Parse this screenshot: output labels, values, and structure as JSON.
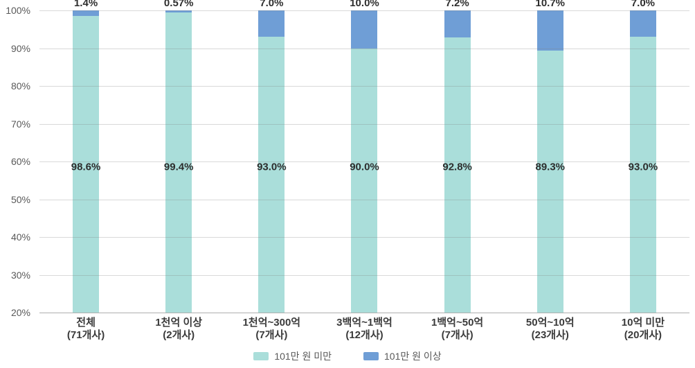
{
  "chart_data": {
    "type": "bar",
    "stacked": true,
    "orientation": "vertical",
    "grid": true,
    "legend_position": "bottom",
    "ylim": [
      20,
      100
    ],
    "yticks": [
      20,
      30,
      40,
      50,
      60,
      70,
      80,
      90,
      100
    ],
    "ytick_labels": [
      "20%",
      "30%",
      "40%",
      "50%",
      "60%",
      "70%",
      "80%",
      "90%",
      "100%"
    ],
    "categories": [
      {
        "label": "전체",
        "sub": "(71개사)"
      },
      {
        "label": "1천억 이상",
        "sub": "(2개사)"
      },
      {
        "label": "1천억~300억",
        "sub": "(7개사)"
      },
      {
        "label": "3백억~1백억",
        "sub": "(12개사)"
      },
      {
        "label": "1백억~50억",
        "sub": "(7개사)"
      },
      {
        "label": "50억~10억",
        "sub": "(23개사)"
      },
      {
        "label": "10억 미만",
        "sub": "(20개사)"
      }
    ],
    "series": [
      {
        "name": "101만 원 미만",
        "color": "#aadeda",
        "values": [
          98.6,
          99.4,
          93.0,
          90.0,
          92.8,
          89.3,
          93.0
        ],
        "labels": [
          "98.6%",
          "99.4%",
          "93.0%",
          "90.0%",
          "92.8%",
          "89.3%",
          "93.0%"
        ]
      },
      {
        "name": "101만 원 이상",
        "color": "#6f9ed6",
        "values": [
          1.4,
          0.57,
          7.0,
          10.0,
          7.2,
          10.7,
          7.0
        ],
        "labels": [
          "1.4%",
          "0.57%",
          "7.0%",
          "10.0%",
          "7.2%",
          "10.7%",
          "7.0%"
        ]
      }
    ],
    "colors": {
      "gridline": "#d6d6d6",
      "baseline": "#aeaeae",
      "tick_text": "#595959",
      "value_text": "#2d2d2d",
      "category_text": "#3a3a3a"
    }
  }
}
